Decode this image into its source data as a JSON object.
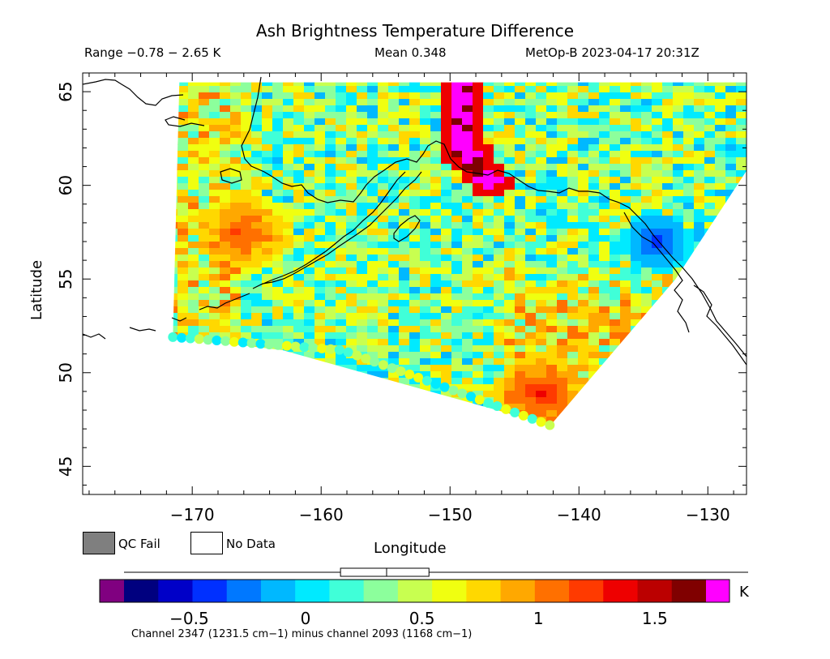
{
  "header": {
    "title": "Ash Brightness Temperature Difference",
    "range_text": "Range −0.78 − 2.65 K",
    "mean_text": "Mean 0.348",
    "satellite_text": "MetOp-B 2023-04-17 20:31Z"
  },
  "legend": {
    "qc_fail_label": "QC Fail",
    "no_data_label": "No Data",
    "qc_fail_color": "#7f7f7f",
    "no_data_color": "#ffffff"
  },
  "colorbar": {
    "unit": "K",
    "min": -0.78,
    "max": 1.72,
    "ticks": [
      {
        "value": -0.5,
        "label": "−0.5"
      },
      {
        "value": 0,
        "label": "0"
      },
      {
        "value": 0.5,
        "label": "0.5"
      },
      {
        "value": 1,
        "label": "1"
      },
      {
        "value": 1.5,
        "label": "1.5"
      }
    ],
    "under_color": "#800080",
    "over_color": "#ff00ff",
    "colors": [
      "#00007f",
      "#0000c8",
      "#0030ff",
      "#0078ff",
      "#00b8ff",
      "#00eaff",
      "#40ffd8",
      "#8cff9c",
      "#c8ff50",
      "#f0ff10",
      "#ffd800",
      "#ffa800",
      "#ff7000",
      "#ff3a00",
      "#ee0000",
      "#bb0000",
      "#800000"
    ],
    "boxplot": {
      "min": -0.78,
      "q1": 0.15,
      "median": 0.348,
      "q3": 0.53,
      "max": 2.65
    },
    "channel_text": "Channel 2347 (1231.5 cm−1) minus channel 2093 (1168 cm−1)"
  },
  "chart_data": {
    "type": "heatmap",
    "title": "Ash Brightness Temperature Difference",
    "xlabel": "Longitude",
    "ylabel": "Latitude",
    "xlim": [
      -178.5,
      -127
    ],
    "ylim": [
      43.5,
      66
    ],
    "xticks": [
      {
        "value": -170,
        "label": "−170"
      },
      {
        "value": -160,
        "label": "−160"
      },
      {
        "value": -150,
        "label": "−150"
      },
      {
        "value": -140,
        "label": "−140"
      },
      {
        "value": -130,
        "label": "−130"
      }
    ],
    "yticks": [
      {
        "value": 45,
        "label": "45"
      },
      {
        "value": 50,
        "label": "50"
      },
      {
        "value": 55,
        "label": "55"
      },
      {
        "value": 60,
        "label": "60"
      },
      {
        "value": 65,
        "label": "65"
      }
    ],
    "value_units": "K",
    "swath_corners": [
      [
        -171,
        65.5
      ],
      [
        -122.5,
        65.5
      ],
      [
        -132.5,
        55
      ],
      [
        -142.2,
        47.2
      ],
      [
        -163,
        51.2
      ],
      [
        -171.5,
        51.9
      ]
    ],
    "features": [
      {
        "kind": "ash plume",
        "points": [
          [
            -148.8,
            66
          ],
          [
            -149.2,
            63.5
          ],
          [
            -148.6,
            61.6
          ],
          [
            -147,
            60.2
          ]
        ],
        "value": 1.8
      },
      {
        "kind": "warm patch",
        "center": [
          -143,
          48.8
        ],
        "value": 1.3
      },
      {
        "kind": "warm patch",
        "center": [
          -166,
          57.5
        ],
        "value": 1.2
      },
      {
        "kind": "cool patch",
        "center": [
          -134,
          57
        ],
        "value": -0.45
      }
    ],
    "mean": 0.348,
    "range": [
      -0.78,
      2.65
    ],
    "grid": false
  }
}
